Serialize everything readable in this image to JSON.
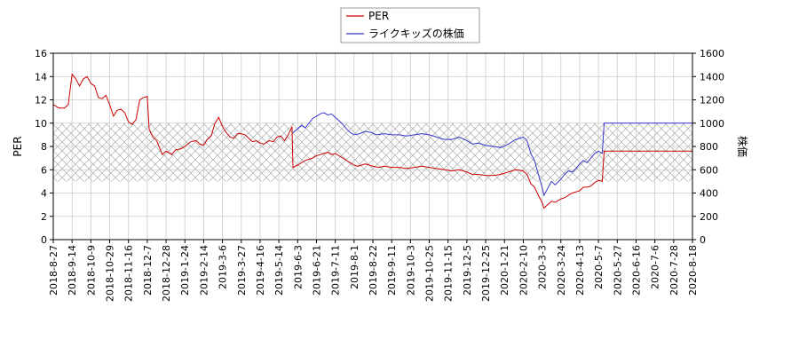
{
  "chart_data": {
    "type": "line",
    "title": "",
    "xlabel": "",
    "ylabel_left": "PER",
    "ylabel_right": "株価",
    "grid": true,
    "legend_placement": "top-center",
    "shaded_band": {
      "axis": "left",
      "from": 5,
      "to": 10,
      "pattern": "crosshatch"
    },
    "x_ticks": [
      "2018-8-27",
      "2018-9-14",
      "2018-10-9",
      "2018-10-29",
      "2018-11-16",
      "2018-12-7",
      "2018-12-28",
      "2019-1-24",
      "2019-2-14",
      "2019-3-6",
      "2019-3-27",
      "2019-4-16",
      "2019-5-14",
      "2019-6-3",
      "2019-6-21",
      "2019-7-11",
      "2019-8-1",
      "2019-8-22",
      "2019-9-11",
      "2019-10-3",
      "2019-10-25",
      "2019-11-15",
      "2019-12-5",
      "2019-12-25",
      "2020-1-21",
      "2020-2-10",
      "2020-3-3",
      "2020-3-24",
      "2020-4-13",
      "2020-5-7",
      "2020-5-27",
      "2020-6-16",
      "2020-7-6",
      "2020-7-28",
      "2020-8-18"
    ],
    "y_left": {
      "min": 0,
      "max": 16,
      "ticks": [
        "0",
        "2",
        "4",
        "6",
        "8",
        "10",
        "12",
        "14",
        "16"
      ]
    },
    "y_right": {
      "min": 0,
      "max": 1600,
      "ticks": [
        "0",
        "200",
        "400",
        "600",
        "800",
        "1000",
        "1200",
        "1400",
        "1600"
      ]
    },
    "series": [
      {
        "name": "PER",
        "axis": "left",
        "color": "#cc0000",
        "points": [
          [
            0,
            11.6
          ],
          [
            0.3,
            11.3
          ],
          [
            0.6,
            11.3
          ],
          [
            0.8,
            11.6
          ],
          [
            1.0,
            14.2
          ],
          [
            1.2,
            13.8
          ],
          [
            1.4,
            13.2
          ],
          [
            1.6,
            13.8
          ],
          [
            1.8,
            14.0
          ],
          [
            2.0,
            13.4
          ],
          [
            2.2,
            13.2
          ],
          [
            2.4,
            12.2
          ],
          [
            2.6,
            12.1
          ],
          [
            2.8,
            12.4
          ],
          [
            3.0,
            11.6
          ],
          [
            3.2,
            10.6
          ],
          [
            3.4,
            11.1
          ],
          [
            3.6,
            11.2
          ],
          [
            3.8,
            10.9
          ],
          [
            4.0,
            10.1
          ],
          [
            4.2,
            9.9
          ],
          [
            4.4,
            10.3
          ],
          [
            4.6,
            12.0
          ],
          [
            4.8,
            12.2
          ],
          [
            5.0,
            12.3
          ],
          [
            5.1,
            9.5
          ],
          [
            5.3,
            8.8
          ],
          [
            5.5,
            8.5
          ],
          [
            5.8,
            7.3
          ],
          [
            6.0,
            7.6
          ],
          [
            6.3,
            7.3
          ],
          [
            6.5,
            7.7
          ],
          [
            6.8,
            7.8
          ],
          [
            7.0,
            8.0
          ],
          [
            7.3,
            8.4
          ],
          [
            7.6,
            8.5
          ],
          [
            7.8,
            8.2
          ],
          [
            8.0,
            8.1
          ],
          [
            8.2,
            8.6
          ],
          [
            8.4,
            8.9
          ],
          [
            8.6,
            10.0
          ],
          [
            8.8,
            10.5
          ],
          [
            9.0,
            9.7
          ],
          [
            9.2,
            9.2
          ],
          [
            9.4,
            8.8
          ],
          [
            9.6,
            8.7
          ],
          [
            9.8,
            9.1
          ],
          [
            10.0,
            9.1
          ],
          [
            10.2,
            9.0
          ],
          [
            10.4,
            8.7
          ],
          [
            10.6,
            8.4
          ],
          [
            10.8,
            8.5
          ],
          [
            11.0,
            8.3
          ],
          [
            11.2,
            8.2
          ],
          [
            11.5,
            8.5
          ],
          [
            11.7,
            8.4
          ],
          [
            11.9,
            8.8
          ],
          [
            12.1,
            8.9
          ],
          [
            12.3,
            8.5
          ],
          [
            12.5,
            9.0
          ],
          [
            12.7,
            9.7
          ],
          [
            12.75,
            6.2
          ],
          [
            13.0,
            6.4
          ],
          [
            13.2,
            6.6
          ],
          [
            13.4,
            6.8
          ],
          [
            13.6,
            6.9
          ],
          [
            13.8,
            7.0
          ],
          [
            14.0,
            7.2
          ],
          [
            14.2,
            7.3
          ],
          [
            14.4,
            7.4
          ],
          [
            14.6,
            7.5
          ],
          [
            14.8,
            7.3
          ],
          [
            15.0,
            7.4
          ],
          [
            15.2,
            7.2
          ],
          [
            15.4,
            7.0
          ],
          [
            15.6,
            6.8
          ],
          [
            15.8,
            6.6
          ],
          [
            16.0,
            6.4
          ],
          [
            16.2,
            6.3
          ],
          [
            16.4,
            6.4
          ],
          [
            16.6,
            6.5
          ],
          [
            16.8,
            6.4
          ],
          [
            17.0,
            6.3
          ],
          [
            17.3,
            6.2
          ],
          [
            17.6,
            6.3
          ],
          [
            18.0,
            6.2
          ],
          [
            18.4,
            6.2
          ],
          [
            18.8,
            6.1
          ],
          [
            19.2,
            6.2
          ],
          [
            19.6,
            6.3
          ],
          [
            20.0,
            6.2
          ],
          [
            20.4,
            6.1
          ],
          [
            20.8,
            6.0
          ],
          [
            21.2,
            5.9
          ],
          [
            21.6,
            6.0
          ],
          [
            22.0,
            5.8
          ],
          [
            22.3,
            5.6
          ],
          [
            22.6,
            5.6
          ],
          [
            23.0,
            5.5
          ],
          [
            23.4,
            5.5
          ],
          [
            23.8,
            5.6
          ],
          [
            24.2,
            5.8
          ],
          [
            24.6,
            6.0
          ],
          [
            25.0,
            5.9
          ],
          [
            25.2,
            5.6
          ],
          [
            25.4,
            4.8
          ],
          [
            25.6,
            4.5
          ],
          [
            25.8,
            3.8
          ],
          [
            26.0,
            3.2
          ],
          [
            26.1,
            2.7
          ],
          [
            26.3,
            3.0
          ],
          [
            26.5,
            3.3
          ],
          [
            26.7,
            3.2
          ],
          [
            27.0,
            3.5
          ],
          [
            27.2,
            3.6
          ],
          [
            27.4,
            3.8
          ],
          [
            27.6,
            4.0
          ],
          [
            27.8,
            4.1
          ],
          [
            28.0,
            4.2
          ],
          [
            28.2,
            4.5
          ],
          [
            28.4,
            4.5
          ],
          [
            28.6,
            4.6
          ],
          [
            28.8,
            4.9
          ],
          [
            29.0,
            5.1
          ],
          [
            29.2,
            5.0
          ],
          [
            29.3,
            7.6
          ],
          [
            29.6,
            7.6
          ],
          [
            30.0,
            7.6
          ],
          [
            30.5,
            7.6
          ],
          [
            31.0,
            7.6
          ],
          [
            31.5,
            7.6
          ],
          [
            32.0,
            7.6
          ],
          [
            32.5,
            7.6
          ],
          [
            33.0,
            7.6
          ],
          [
            33.5,
            7.6
          ],
          [
            34.0,
            7.6
          ]
        ]
      },
      {
        "name": "ライクキッズの株価",
        "axis": "right",
        "color": "#3333cc",
        "points": [
          [
            12.75,
            920
          ],
          [
            13.0,
            950
          ],
          [
            13.2,
            980
          ],
          [
            13.4,
            960
          ],
          [
            13.6,
            1000
          ],
          [
            13.8,
            1040
          ],
          [
            14.0,
            1060
          ],
          [
            14.2,
            1080
          ],
          [
            14.4,
            1090
          ],
          [
            14.6,
            1070
          ],
          [
            14.8,
            1080
          ],
          [
            15.0,
            1050
          ],
          [
            15.2,
            1020
          ],
          [
            15.4,
            990
          ],
          [
            15.6,
            950
          ],
          [
            15.8,
            920
          ],
          [
            16.0,
            900
          ],
          [
            16.3,
            910
          ],
          [
            16.6,
            930
          ],
          [
            16.9,
            920
          ],
          [
            17.2,
            900
          ],
          [
            17.6,
            910
          ],
          [
            18.0,
            900
          ],
          [
            18.4,
            900
          ],
          [
            18.8,
            890
          ],
          [
            19.2,
            900
          ],
          [
            19.6,
            910
          ],
          [
            20.0,
            900
          ],
          [
            20.4,
            880
          ],
          [
            20.8,
            860
          ],
          [
            21.2,
            860
          ],
          [
            21.6,
            880
          ],
          [
            22.0,
            850
          ],
          [
            22.3,
            820
          ],
          [
            22.6,
            830
          ],
          [
            23.0,
            810
          ],
          [
            23.4,
            800
          ],
          [
            23.8,
            790
          ],
          [
            24.2,
            820
          ],
          [
            24.6,
            860
          ],
          [
            25.0,
            880
          ],
          [
            25.2,
            850
          ],
          [
            25.4,
            740
          ],
          [
            25.6,
            680
          ],
          [
            25.8,
            560
          ],
          [
            26.0,
            450
          ],
          [
            26.1,
            380
          ],
          [
            26.3,
            440
          ],
          [
            26.5,
            500
          ],
          [
            26.7,
            470
          ],
          [
            27.0,
            520
          ],
          [
            27.2,
            560
          ],
          [
            27.4,
            590
          ],
          [
            27.6,
            580
          ],
          [
            27.8,
            610
          ],
          [
            28.0,
            650
          ],
          [
            28.2,
            680
          ],
          [
            28.4,
            660
          ],
          [
            28.6,
            700
          ],
          [
            28.8,
            740
          ],
          [
            29.0,
            760
          ],
          [
            29.2,
            740
          ],
          [
            29.3,
            1000
          ],
          [
            29.6,
            1000
          ],
          [
            30.0,
            1000
          ],
          [
            30.5,
            1000
          ],
          [
            31.0,
            1000
          ],
          [
            31.5,
            1000
          ],
          [
            32.0,
            1000
          ],
          [
            32.5,
            1000
          ],
          [
            33.0,
            1000
          ],
          [
            33.5,
            1000
          ],
          [
            34.0,
            1000
          ]
        ]
      }
    ]
  }
}
